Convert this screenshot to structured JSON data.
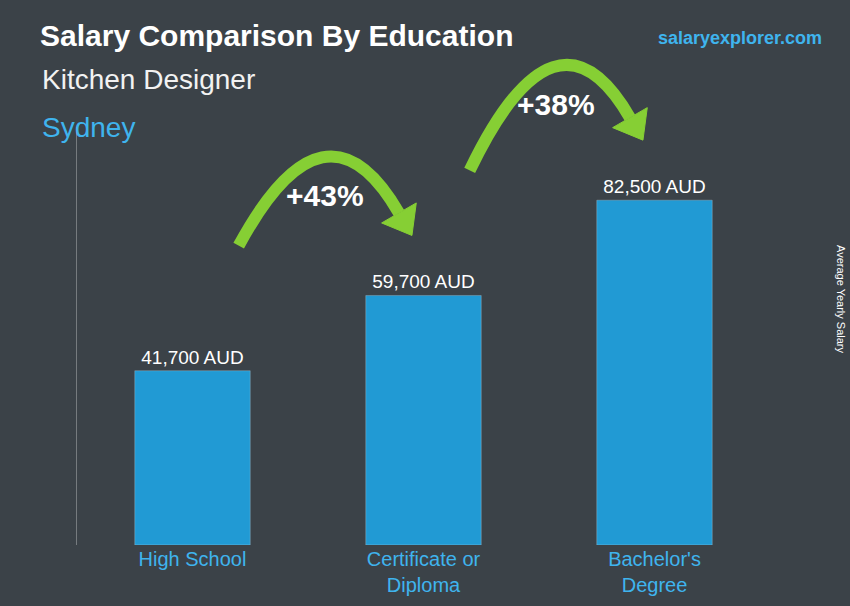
{
  "chart_data": {
    "type": "bar",
    "title": "Salary Comparison By Education",
    "subtitle": "Kitchen Designer",
    "location": "Sydney",
    "source": "salaryexplorer.com",
    "y_label": "Average Yearly Salary",
    "categories": [
      "High School",
      "Certificate or Diploma",
      "Bachelor's Degree"
    ],
    "values": [
      41700,
      59700,
      82500
    ],
    "value_labels": [
      "41,700 AUD",
      "59,700 AUD",
      "82,500 AUD"
    ],
    "data_labels": true,
    "color": "#1ea7e8",
    "ylim": [
      0,
      100000
    ],
    "yticks": [],
    "grid": false,
    "tick_labels": "x",
    "annotations": [
      {
        "text": "+43%",
        "from": 0,
        "to": 1
      },
      {
        "text": "+38%",
        "from": 1,
        "to": 2
      }
    ]
  }
}
